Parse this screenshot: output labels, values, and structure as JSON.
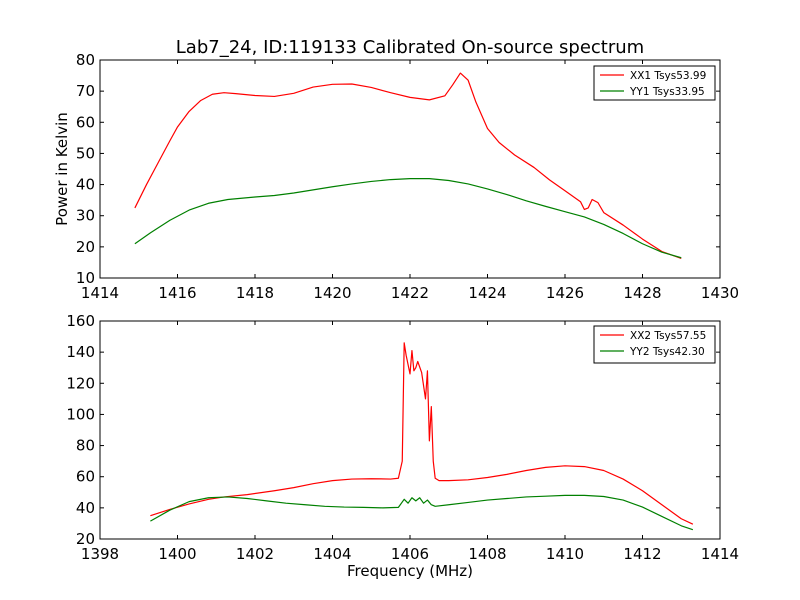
{
  "chart_data": [
    {
      "type": "line",
      "title": "Lab7_24, ID:119133 Calibrated On-source spectrum",
      "xlabel": "",
      "ylabel": "Power in Kelvin",
      "xlim": [
        1414,
        1430
      ],
      "ylim": [
        10,
        80
      ],
      "xticks": [
        1414,
        1416,
        1418,
        1420,
        1422,
        1424,
        1426,
        1428,
        1430
      ],
      "yticks": [
        10,
        20,
        30,
        40,
        50,
        60,
        70,
        80
      ],
      "grid": false,
      "legend_position": "top-right",
      "series": [
        {
          "name": "XX1 Tsys53.99",
          "color": "#ff0000",
          "x": [
            1414.9,
            1415.2,
            1415.5,
            1415.8,
            1416.0,
            1416.3,
            1416.6,
            1416.9,
            1417.2,
            1417.5,
            1418.0,
            1418.5,
            1419.0,
            1419.5,
            1420.0,
            1420.5,
            1421.0,
            1421.5,
            1422.0,
            1422.5,
            1422.9,
            1423.1,
            1423.3,
            1423.5,
            1423.7,
            1424.0,
            1424.3,
            1424.7,
            1425.2,
            1425.6,
            1426.0,
            1426.4,
            1426.5,
            1426.6,
            1426.7,
            1426.85,
            1427.0,
            1427.5,
            1428.0,
            1428.5,
            1429.0
          ],
          "y": [
            32.5,
            40,
            47,
            54,
            58.5,
            63.5,
            67,
            69,
            69.5,
            69.2,
            68.6,
            68.3,
            69.3,
            71.3,
            72.2,
            72.3,
            71.2,
            69.5,
            68,
            67.2,
            68.5,
            72,
            75.8,
            73.5,
            66.5,
            58,
            53.5,
            49.5,
            45.5,
            41.5,
            38,
            34.5,
            32,
            32.5,
            35.2,
            34.2,
            31,
            27,
            22.5,
            18.5,
            16.3
          ]
        },
        {
          "name": "YY1 Tsys33.95",
          "color": "#008000",
          "x": [
            1414.9,
            1415.3,
            1415.8,
            1416.3,
            1416.8,
            1417.3,
            1418.0,
            1418.5,
            1419.0,
            1419.5,
            1420.0,
            1420.5,
            1421.0,
            1421.5,
            1422.0,
            1422.5,
            1423.0,
            1423.5,
            1424.0,
            1424.5,
            1425.0,
            1425.5,
            1426.0,
            1426.5,
            1427.0,
            1427.5,
            1428.0,
            1428.5,
            1429.0
          ],
          "y": [
            21,
            24.5,
            28.5,
            31.8,
            34,
            35.2,
            36,
            36.5,
            37.3,
            38.3,
            39.3,
            40.2,
            41,
            41.6,
            41.9,
            41.9,
            41.3,
            40.2,
            38.6,
            36.8,
            34.8,
            33,
            31.3,
            29.6,
            27.2,
            24.3,
            21,
            18.3,
            16.5
          ]
        }
      ]
    },
    {
      "type": "line",
      "title": "",
      "xlabel": "Frequency (MHz)",
      "ylabel": "",
      "xlim": [
        1398,
        1414
      ],
      "ylim": [
        20,
        160
      ],
      "xticks": [
        1398,
        1400,
        1402,
        1404,
        1406,
        1408,
        1410,
        1412,
        1414
      ],
      "yticks": [
        20,
        40,
        60,
        80,
        100,
        120,
        140,
        160
      ],
      "grid": false,
      "legend_position": "top-right",
      "series": [
        {
          "name": "XX2 Tsys57.55",
          "color": "#ff0000",
          "x": [
            1399.3,
            1399.8,
            1400.3,
            1400.8,
            1401.2,
            1401.8,
            1402.5,
            1403.0,
            1403.5,
            1404.0,
            1404.5,
            1405.0,
            1405.5,
            1405.7,
            1405.8,
            1405.85,
            1405.9,
            1406.0,
            1406.05,
            1406.1,
            1406.15,
            1406.2,
            1406.3,
            1406.4,
            1406.45,
            1406.5,
            1406.55,
            1406.6,
            1406.65,
            1406.75,
            1407.0,
            1407.5,
            1408.0,
            1408.5,
            1409.0,
            1409.5,
            1410.0,
            1410.5,
            1411.0,
            1411.5,
            1412.0,
            1412.5,
            1413.0,
            1413.3
          ],
          "y": [
            35,
            39,
            42.5,
            45.5,
            47,
            48.5,
            51,
            53,
            55.5,
            57.5,
            58.5,
            58.7,
            58.5,
            59,
            70,
            146,
            138,
            126,
            141,
            128,
            130,
            134,
            127,
            110,
            128,
            83,
            105,
            70,
            59,
            57.5,
            57.5,
            58,
            59.5,
            61.5,
            64,
            66,
            67,
            66.5,
            64,
            58.5,
            51,
            42,
            33,
            29.5
          ]
        },
        {
          "name": "YY2 Tsys42.30",
          "color": "#008000",
          "x": [
            1399.3,
            1399.8,
            1400.3,
            1400.8,
            1401.3,
            1401.8,
            1402.3,
            1402.8,
            1403.3,
            1403.8,
            1404.3,
            1404.8,
            1405.3,
            1405.7,
            1405.85,
            1405.95,
            1406.05,
            1406.15,
            1406.25,
            1406.35,
            1406.45,
            1406.55,
            1406.65,
            1407.0,
            1407.5,
            1408.0,
            1408.5,
            1409.0,
            1409.5,
            1410.0,
            1410.5,
            1411.0,
            1411.5,
            1412.0,
            1412.5,
            1413.0,
            1413.3
          ],
          "y": [
            31.5,
            38.5,
            44,
            46.5,
            47,
            46,
            44.5,
            43,
            42,
            41,
            40.5,
            40.3,
            40,
            40.3,
            45.5,
            43,
            46.5,
            44.5,
            46.5,
            43,
            45,
            42,
            41,
            42,
            43.5,
            45,
            46,
            47,
            47.5,
            48,
            48,
            47.3,
            45,
            40.5,
            34.5,
            28.5,
            26
          ]
        }
      ]
    }
  ]
}
